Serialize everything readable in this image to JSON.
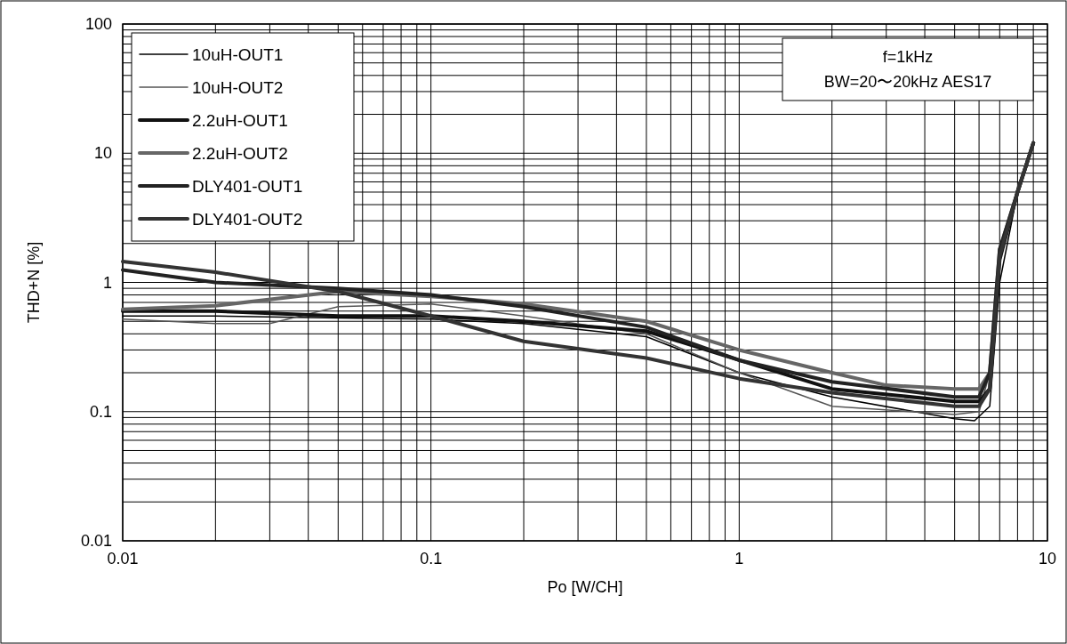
{
  "chart_data": {
    "type": "line",
    "xlabel": "Po [W/CH]",
    "ylabel": "THD+N [%]",
    "log": "xy",
    "grid": true,
    "legend": "top left",
    "line_style": "solid",
    "xlim": [
      0.01,
      10
    ],
    "xticks": [
      0.01,
      0.1,
      1,
      10
    ],
    "ylim": [
      0.01,
      100
    ],
    "yticks": [
      0.01,
      0.1,
      1,
      10,
      100
    ],
    "annotations": [
      "f=1kHz",
      "BW=20〜20kHz AES17"
    ],
    "series": [
      {
        "name": "10uH-OUT1",
        "color": "#000000",
        "x": [
          0.01,
          0.02,
          0.05,
          0.1,
          0.2,
          0.5,
          1,
          2,
          5,
          5.8,
          6.5,
          7,
          8,
          9
        ],
        "values": [
          0.55,
          0.55,
          0.53,
          0.52,
          0.48,
          0.38,
          0.2,
          0.13,
          0.088,
          0.085,
          0.11,
          1,
          5,
          12
        ]
      },
      {
        "name": "10uH-OUT2",
        "color": "#555555",
        "x": [
          0.01,
          0.02,
          0.03,
          0.05,
          0.1,
          0.2,
          0.5,
          1,
          2,
          5,
          6,
          6.5,
          7,
          8,
          9
        ],
        "values": [
          0.52,
          0.48,
          0.48,
          0.65,
          0.68,
          0.55,
          0.4,
          0.2,
          0.11,
          0.095,
          0.1,
          0.2,
          1.5,
          5.5,
          12
        ]
      },
      {
        "name": "2.2uH-OUT1",
        "color": "#111111",
        "x": [
          0.01,
          0.02,
          0.05,
          0.1,
          0.2,
          0.5,
          1,
          2,
          5,
          6,
          6.5,
          7,
          8,
          9
        ],
        "values": [
          0.6,
          0.6,
          0.55,
          0.55,
          0.5,
          0.42,
          0.25,
          0.15,
          0.12,
          0.12,
          0.15,
          1.5,
          5,
          12
        ]
      },
      {
        "name": "2.2uH-OUT2",
        "color": "#666666",
        "x": [
          0.01,
          0.02,
          0.05,
          0.1,
          0.2,
          0.5,
          1,
          2,
          3,
          5,
          6,
          6.5,
          7,
          8,
          9
        ],
        "values": [
          0.62,
          0.66,
          0.85,
          0.78,
          0.68,
          0.5,
          0.3,
          0.2,
          0.16,
          0.15,
          0.15,
          0.2,
          1.8,
          5,
          12
        ]
      },
      {
        "name": "DLY401-OUT1",
        "color": "#222222",
        "x": [
          0.01,
          0.02,
          0.05,
          0.1,
          0.2,
          0.5,
          1,
          2,
          5,
          6,
          6.5,
          7,
          8,
          9
        ],
        "values": [
          1.25,
          1.0,
          0.9,
          0.8,
          0.65,
          0.45,
          0.25,
          0.17,
          0.13,
          0.13,
          0.2,
          1.8,
          5,
          12
        ]
      },
      {
        "name": "DLY401-OUT2",
        "color": "#333333",
        "x": [
          0.01,
          0.02,
          0.05,
          0.1,
          0.2,
          0.5,
          1,
          2,
          5,
          6,
          6.5,
          7,
          8,
          9
        ],
        "values": [
          1.45,
          1.2,
          0.85,
          0.55,
          0.35,
          0.26,
          0.18,
          0.14,
          0.11,
          0.11,
          0.15,
          1.6,
          5,
          12
        ]
      }
    ]
  }
}
